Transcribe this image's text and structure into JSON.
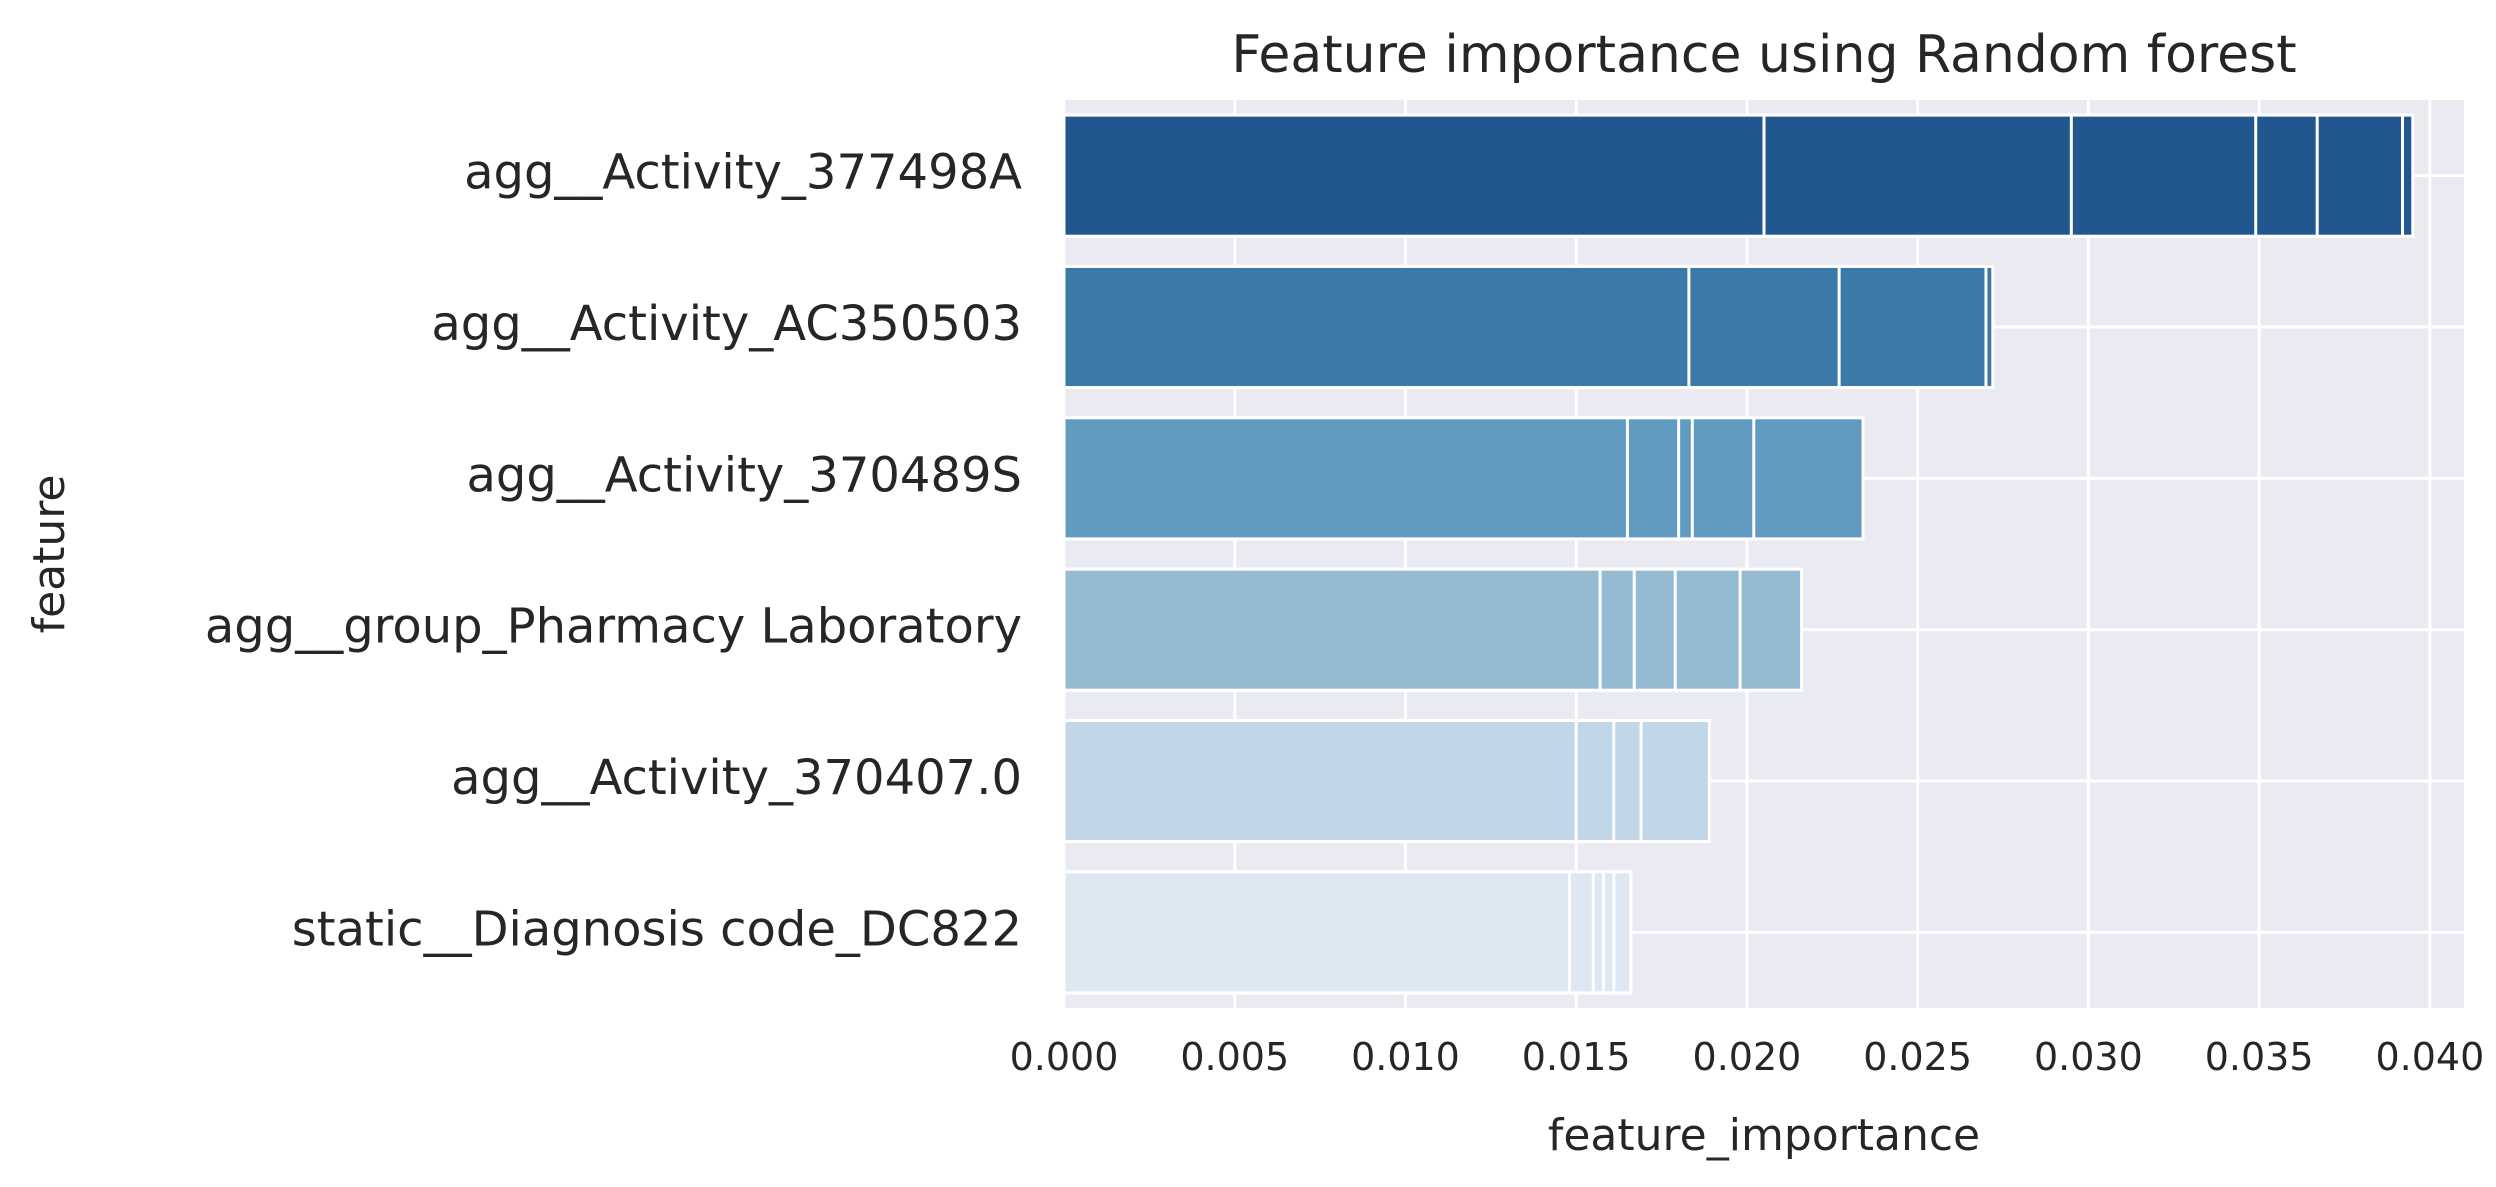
{
  "chart_data": {
    "type": "bar",
    "orientation": "horizontal",
    "title": "Feature importance using Random forest",
    "xlabel": "feature_importance",
    "ylabel": "feature",
    "xlim": [
      0,
      0.041
    ],
    "xticks": [
      "0.000",
      "0.005",
      "0.010",
      "0.015",
      "0.020",
      "0.025",
      "0.030",
      "0.035",
      "0.040"
    ],
    "grid": true,
    "legend": "none",
    "categories": [
      "agg__Activity_377498A",
      "agg__Activity_AC350503",
      "agg__Activity_370489S",
      "agg__group_Pharmacy Laboratory",
      "agg__Activity_370407.0",
      "static__Diagnosis code_DC822"
    ],
    "colors": [
      "#21578e",
      "#3b79a8",
      "#619bc0",
      "#94bbd2",
      "#c1d6e7",
      "#dde8f2"
    ],
    "background": "#eaeaf2",
    "series": [
      {
        "values": [
          0.0395,
          0.0272,
          0.0234,
          0.0216,
          0.0189,
          0.0166
        ]
      },
      {
        "values": [
          0.0392,
          0.027,
          0.0202,
          0.0198,
          0.0169,
          0.0161
        ]
      },
      {
        "values": [
          0.0367,
          0.0227,
          0.0184,
          0.0179,
          0.0161,
          0.0158
        ]
      },
      {
        "values": [
          0.0349,
          0.0183,
          0.018,
          0.0167,
          0.015,
          0.0155
        ]
      },
      {
        "values": [
          0.0295,
          null,
          0.0165,
          0.0157,
          null,
          0.0148
        ]
      },
      {
        "values": [
          0.0205,
          null,
          null,
          null,
          null,
          null
        ]
      }
    ]
  }
}
